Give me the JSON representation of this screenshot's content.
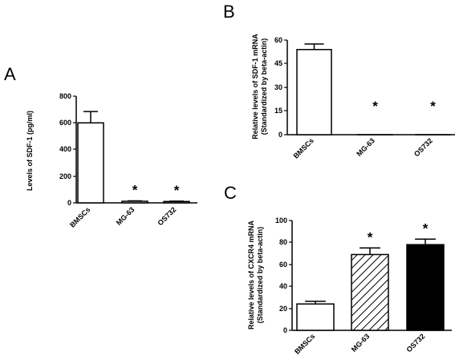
{
  "chart_data": [
    {
      "panel": "A",
      "type": "bar",
      "ylabel": "Levels of SDF-1 (pg/ml)",
      "categories": [
        "BMSCs",
        "MG-63",
        "OS732"
      ],
      "values": [
        600,
        12,
        10
      ],
      "errors": [
        85,
        3,
        3
      ],
      "annotations": [
        "",
        "*",
        "*"
      ],
      "fills": [
        "white",
        "white",
        "white"
      ],
      "ylim": [
        0,
        800
      ],
      "yticks": [
        "0",
        "200",
        "400",
        "600",
        "800"
      ]
    },
    {
      "panel": "B",
      "type": "bar",
      "ylabel": [
        "Relative levels of SDF-1 mRNA",
        "(Standardized by beta-actin)"
      ],
      "categories": [
        "BMSCs",
        "MG-63",
        "OS732"
      ],
      "values": [
        54,
        0,
        0
      ],
      "errors": [
        3.5,
        0,
        0
      ],
      "annotations": [
        "",
        "*",
        "*"
      ],
      "fills": [
        "white",
        "white",
        "white"
      ],
      "ylim": [
        0,
        60
      ],
      "yticks": [
        "0",
        "15",
        "30",
        "45",
        "60"
      ]
    },
    {
      "panel": "C",
      "type": "bar",
      "ylabel": [
        "Relative levels of CXCR4 mRNA",
        "(Standardized by beta-actin)"
      ],
      "categories": [
        "BMSCs",
        "MG-63",
        "OS732"
      ],
      "values": [
        24,
        69,
        78
      ],
      "errors": [
        2.5,
        6,
        5
      ],
      "annotations": [
        "",
        "*",
        "*"
      ],
      "fills": [
        "white",
        "hatch",
        "black"
      ],
      "ylim": [
        0,
        100
      ],
      "yticks": [
        "0",
        "20",
        "40",
        "60",
        "80",
        "100"
      ]
    }
  ]
}
